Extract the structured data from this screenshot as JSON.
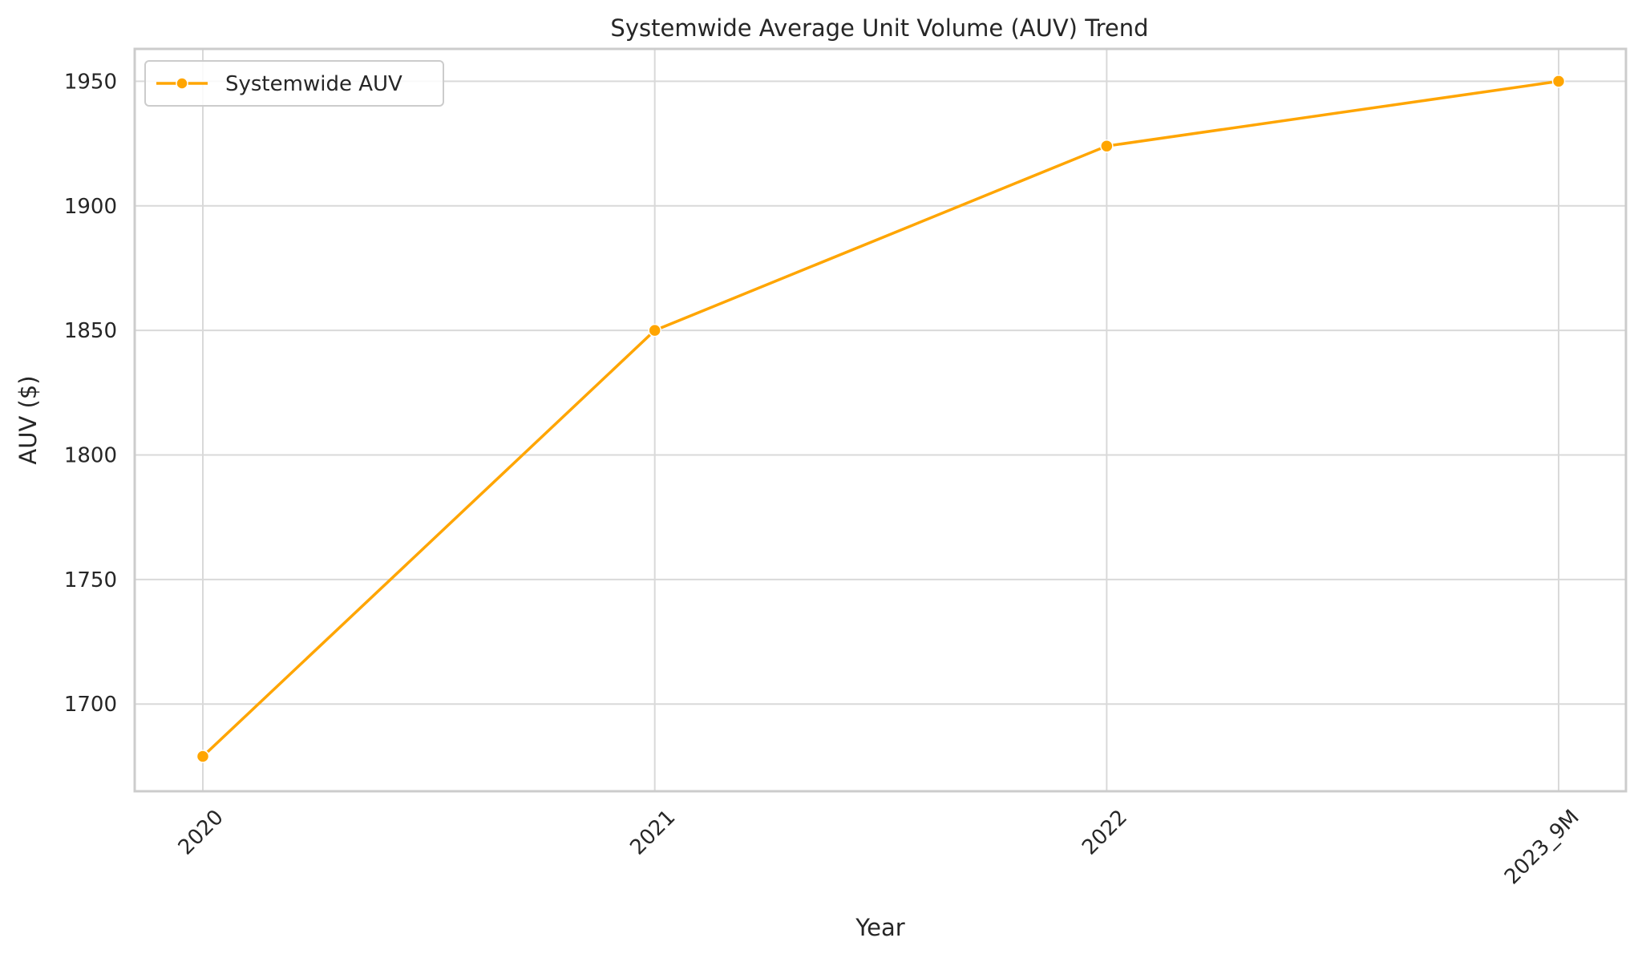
{
  "chart_data": {
    "type": "line",
    "title": "Systemwide Average Unit Volume (AUV) Trend",
    "xlabel": "Year",
    "ylabel": "AUV ($)",
    "categories": [
      "2020",
      "2021",
      "2022",
      "2023_9M"
    ],
    "series": [
      {
        "name": "Systemwide AUV",
        "values": [
          1679,
          1850,
          1924,
          1950
        ],
        "color": "#ffa500",
        "marker": "circle"
      }
    ],
    "ylim": [
      1665,
      1963
    ],
    "yticks": [
      1700,
      1750,
      1800,
      1850,
      1900,
      1950
    ],
    "grid": true,
    "legend_position": "top-left",
    "x_tick_rotation": -45
  }
}
